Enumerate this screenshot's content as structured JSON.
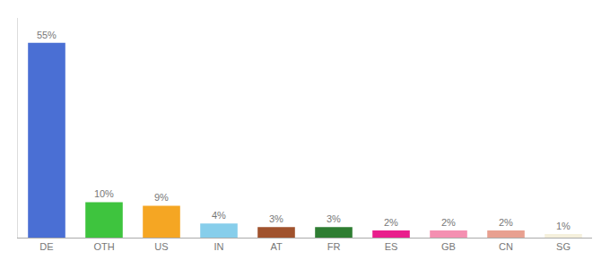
{
  "chart_data": {
    "type": "bar",
    "categories": [
      "DE",
      "OTH",
      "US",
      "IN",
      "AT",
      "FR",
      "ES",
      "GB",
      "CN",
      "SG"
    ],
    "values": [
      55,
      10,
      9,
      4,
      3,
      3,
      2,
      2,
      2,
      1
    ],
    "value_labels": [
      "55%",
      "10%",
      "9%",
      "4%",
      "3%",
      "3%",
      "2%",
      "2%",
      "2%",
      "1%"
    ],
    "colors": [
      "#4a6fd4",
      "#3ec43e",
      "#f5a623",
      "#87ceeb",
      "#a0522d",
      "#2e7d32",
      "#e91e8c",
      "#f48fb1",
      "#e8a090",
      "#f5f0dc"
    ],
    "ylim": [
      0,
      62
    ],
    "data_labels": true,
    "tick_labels": "x",
    "grid": false
  }
}
